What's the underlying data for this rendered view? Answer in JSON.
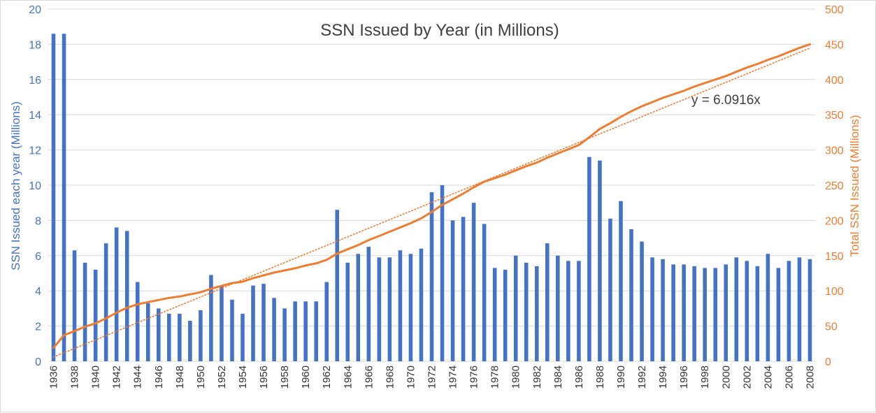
{
  "chart_data": {
    "type": "bar",
    "title": "SSN Issued by Year (in Millions)",
    "ylabel_left": "SSN Issued  each year (Millions)",
    "ylabel_right": "Total SSN Issued  (Millions)",
    "ylim_left": [
      0,
      20
    ],
    "yticks_left": [
      0,
      2,
      4,
      6,
      8,
      10,
      12,
      14,
      16,
      18,
      20
    ],
    "ylim_right": [
      0,
      500
    ],
    "yticks_right": [
      0,
      50,
      100,
      150,
      200,
      250,
      300,
      350,
      400,
      450,
      500
    ],
    "grid": true,
    "legend": "none",
    "x_tick_years": [
      1936,
      1938,
      1940,
      1942,
      1944,
      1946,
      1948,
      1950,
      1952,
      1954,
      1956,
      1958,
      1960,
      1962,
      1964,
      1966,
      1968,
      1970,
      1972,
      1974,
      1976,
      1978,
      1980,
      1982,
      1984,
      1986,
      1988,
      1990,
      1992,
      1994,
      1996,
      1998,
      2000,
      2002,
      2004,
      2006,
      2008
    ],
    "x_tick_labels": [
      "1936",
      "1938",
      "1940",
      "1942",
      "1944",
      "1946",
      "1948",
      "1950",
      "1952",
      "1954",
      "1956",
      "1958",
      "1960",
      "1962",
      "1964",
      "1966",
      "1968",
      "1970",
      "1972",
      "1974",
      "1976",
      "1978",
      "1980",
      "1982",
      "1984",
      "1986",
      "1988",
      "1990",
      "1992",
      "1994",
      "1996",
      "1998",
      "2000",
      "2002",
      "2004",
      "2006",
      "2008"
    ],
    "years": [
      1936,
      1937,
      1938,
      1939,
      1940,
      1941,
      1942,
      1943,
      1944,
      1945,
      1946,
      1947,
      1948,
      1949,
      1950,
      1951,
      1952,
      1953,
      1954,
      1955,
      1956,
      1957,
      1958,
      1959,
      1960,
      1961,
      1962,
      1963,
      1964,
      1965,
      1966,
      1967,
      1968,
      1969,
      1970,
      1971,
      1972,
      1973,
      1974,
      1975,
      1976,
      1977,
      1978,
      1979,
      1980,
      1981,
      1982,
      1983,
      1984,
      1985,
      1986,
      1987,
      1988,
      1989,
      1990,
      1991,
      1992,
      1993,
      1994,
      1995,
      1996,
      1997,
      1998,
      1999,
      2000,
      2001,
      2002,
      2003,
      2004,
      2005,
      2006,
      2007,
      2008
    ],
    "annual_values": [
      18.6,
      18.6,
      6.3,
      5.6,
      5.2,
      6.7,
      7.6,
      7.4,
      4.5,
      3.3,
      3.0,
      2.7,
      2.7,
      2.3,
      2.9,
      4.9,
      4.3,
      3.5,
      2.7,
      4.3,
      4.4,
      3.6,
      3.0,
      3.4,
      3.4,
      3.4,
      4.5,
      8.6,
      5.6,
      6.1,
      6.5,
      5.9,
      5.9,
      6.3,
      6.1,
      6.4,
      9.6,
      10.0,
      8.0,
      8.2,
      9.0,
      7.8,
      5.3,
      5.2,
      6.0,
      5.6,
      5.4,
      6.7,
      6.0,
      5.7,
      5.7,
      11.6,
      11.4,
      8.1,
      9.1,
      7.5,
      6.8,
      5.9,
      5.8,
      5.5,
      5.5,
      5.4,
      5.3,
      5.3,
      5.5,
      5.9,
      5.7,
      5.4,
      6.1,
      5.3,
      5.7,
      5.9,
      5.8
    ],
    "cumulative_values": [
      19,
      37,
      43,
      49,
      54,
      61,
      69,
      76,
      81,
      84,
      87,
      90,
      92,
      95,
      98,
      103,
      107,
      111,
      113,
      118,
      122,
      126,
      129,
      132,
      136,
      139,
      144,
      153,
      159,
      165,
      172,
      178,
      184,
      190,
      196,
      203,
      212,
      222,
      230,
      238,
      247,
      255,
      260,
      265,
      271,
      277,
      282,
      289,
      295,
      301,
      307,
      318,
      330,
      338,
      347,
      355,
      362,
      368,
      374,
      379,
      384,
      390,
      395,
      400,
      405,
      411,
      417,
      422,
      428,
      433,
      439,
      445,
      450
    ],
    "trendline": {
      "type": "linear",
      "label": "y = 6.0916x",
      "slope": 6.0916,
      "intercept": 0
    },
    "colors": {
      "bars": "#4472c4",
      "cumulative": "#ed7d31",
      "trend": "#ed7d31",
      "grid": "#d9d9d9"
    }
  }
}
